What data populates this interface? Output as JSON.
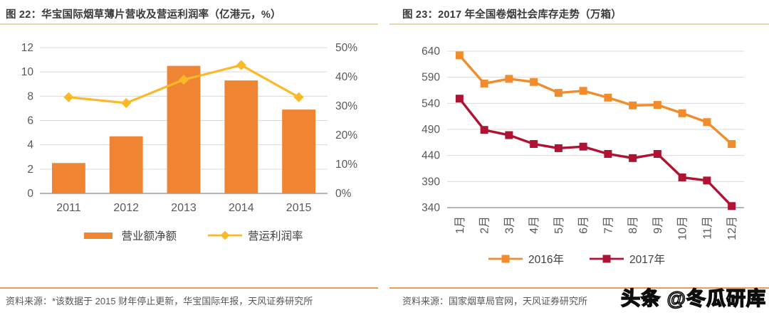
{
  "watermark": {
    "text": "头条 @冬瓜研库"
  },
  "colors": {
    "accent_rule_light": "#F2D4AC",
    "accent_rule": "#EB9C59",
    "title_text": "#3A3A3A",
    "tick_text": "#595959",
    "grid": "#D9D9D9",
    "axis": "#9E9E9E",
    "source_text": "#575757"
  },
  "panels": [
    {
      "source": "资料来源：*该数据于 2015 财年停止更新，华宝国际年报，天风证券研究所"
    },
    {
      "source": "资料来源：国家烟草局官网，天风证券研究所"
    }
  ],
  "chart_data": [
    {
      "id": "fig22",
      "type": "bar+line",
      "title": "图 22：华宝国际烟草薄片营收及营运利润率（亿港元，%）",
      "categories": [
        "2011",
        "2012",
        "2013",
        "2014",
        "2015"
      ],
      "series": [
        {
          "name": "营业额净额",
          "type": "bar",
          "axis": "left",
          "color": "#EF8532",
          "values": [
            2.5,
            4.7,
            10.5,
            9.3,
            6.9
          ]
        },
        {
          "name": "营运利润率",
          "type": "line",
          "axis": "right",
          "color": "#FBB829",
          "marker": "diamond",
          "values": [
            33,
            31,
            39,
            44,
            33
          ]
        }
      ],
      "left_axis": {
        "min": 0,
        "max": 12,
        "step": 2
      },
      "right_axis": {
        "min": 0,
        "max": 50,
        "step": 10,
        "suffix": "%"
      },
      "grid": true,
      "legend_position": "bottom"
    },
    {
      "id": "fig23",
      "type": "line",
      "title": "图 23：2017 年全国卷烟社会库存走势（万箱）",
      "categories": [
        "1月",
        "2月",
        "3月",
        "4月",
        "5月",
        "6月",
        "7月",
        "8月",
        "9月",
        "10月",
        "11月",
        "12月"
      ],
      "series": [
        {
          "name": "2016年",
          "color": "#F18C2D",
          "marker": "square",
          "values": [
            632,
            578,
            587,
            581,
            560,
            564,
            551,
            536,
            537,
            521,
            504,
            462
          ]
        },
        {
          "name": "2017年",
          "color": "#B01233",
          "marker": "square",
          "values": [
            549,
            489,
            479,
            462,
            454,
            457,
            443,
            435,
            443,
            398,
            392,
            343
          ]
        }
      ],
      "y_axis": {
        "min": 340,
        "max": 640,
        "step": 50
      },
      "grid": true,
      "legend_position": "bottom",
      "x_label_rotation": -90
    }
  ]
}
